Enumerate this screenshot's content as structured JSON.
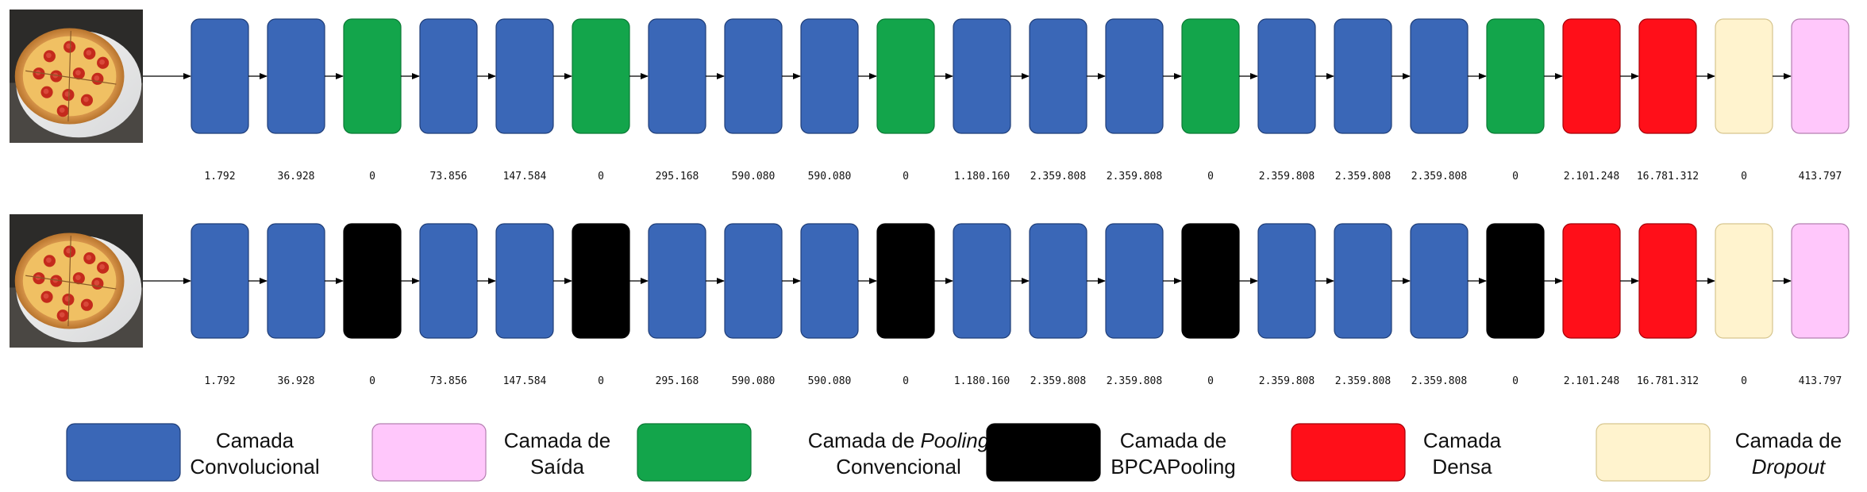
{
  "colors": {
    "conv": "#3A67B7",
    "conv_border": "#1F3E78",
    "pool_conv": "#13A54B",
    "pool_bpca": "#000000",
    "dense": "#FF0F19",
    "dropout": "#FFF3CE",
    "dropout_border": "#D6C58E",
    "output": "#FFC7FB",
    "output_border": "#B47FB0"
  },
  "rows": [
    {
      "image_icon": "pizza-photo",
      "layers": [
        {
          "type": "conv",
          "params": "1.792"
        },
        {
          "type": "conv",
          "params": "36.928"
        },
        {
          "type": "pool_conv",
          "params": "0"
        },
        {
          "type": "conv",
          "params": "73.856"
        },
        {
          "type": "conv",
          "params": "147.584"
        },
        {
          "type": "pool_conv",
          "params": "0"
        },
        {
          "type": "conv",
          "params": "295.168"
        },
        {
          "type": "conv",
          "params": "590.080"
        },
        {
          "type": "conv",
          "params": "590.080"
        },
        {
          "type": "pool_conv",
          "params": "0"
        },
        {
          "type": "conv",
          "params": "1.180.160"
        },
        {
          "type": "conv",
          "params": "2.359.808"
        },
        {
          "type": "conv",
          "params": "2.359.808"
        },
        {
          "type": "pool_conv",
          "params": "0"
        },
        {
          "type": "conv",
          "params": "2.359.808"
        },
        {
          "type": "conv",
          "params": "2.359.808"
        },
        {
          "type": "conv",
          "params": "2.359.808"
        },
        {
          "type": "pool_conv",
          "params": "0"
        },
        {
          "type": "dense",
          "params": "2.101.248"
        },
        {
          "type": "dense",
          "params": "16.781.312"
        },
        {
          "type": "dropout",
          "params": "0"
        },
        {
          "type": "output",
          "params": "413.797"
        }
      ]
    },
    {
      "image_icon": "pizza-photo",
      "layers": [
        {
          "type": "conv",
          "params": "1.792"
        },
        {
          "type": "conv",
          "params": "36.928"
        },
        {
          "type": "pool_bpca",
          "params": "0"
        },
        {
          "type": "conv",
          "params": "73.856"
        },
        {
          "type": "conv",
          "params": "147.584"
        },
        {
          "type": "pool_bpca",
          "params": "0"
        },
        {
          "type": "conv",
          "params": "295.168"
        },
        {
          "type": "conv",
          "params": "590.080"
        },
        {
          "type": "conv",
          "params": "590.080"
        },
        {
          "type": "pool_bpca",
          "params": "0"
        },
        {
          "type": "conv",
          "params": "1.180.160"
        },
        {
          "type": "conv",
          "params": "2.359.808"
        },
        {
          "type": "conv",
          "params": "2.359.808"
        },
        {
          "type": "pool_bpca",
          "params": "0"
        },
        {
          "type": "conv",
          "params": "2.359.808"
        },
        {
          "type": "conv",
          "params": "2.359.808"
        },
        {
          "type": "conv",
          "params": "2.359.808"
        },
        {
          "type": "pool_bpca",
          "params": "0"
        },
        {
          "type": "dense",
          "params": "2.101.248"
        },
        {
          "type": "dense",
          "params": "16.781.312"
        },
        {
          "type": "dropout",
          "params": "0"
        },
        {
          "type": "output",
          "params": "413.797"
        }
      ]
    }
  ],
  "legend": [
    {
      "type": "conv",
      "lines": [
        [
          {
            "t": "Camada"
          }
        ],
        [
          {
            "t": "Convolucional"
          }
        ]
      ]
    },
    {
      "type": "output",
      "lines": [
        [
          {
            "t": "Camada de"
          }
        ],
        [
          {
            "t": "Saída"
          }
        ]
      ]
    },
    {
      "type": "pool_conv",
      "lines": [
        [
          {
            "t": "Camada de "
          },
          {
            "t": "Pooling",
            "i": true
          }
        ],
        [
          {
            "t": "Convencional"
          }
        ]
      ]
    },
    {
      "type": "pool_bpca",
      "lines": [
        [
          {
            "t": "Camada de"
          }
        ],
        [
          {
            "t": "BPCAPooling"
          }
        ]
      ]
    },
    {
      "type": "dense",
      "lines": [
        [
          {
            "t": "Camada"
          }
        ],
        [
          {
            "t": "Densa"
          }
        ]
      ]
    },
    {
      "type": "dropout",
      "lines": [
        [
          {
            "t": "Camada de"
          }
        ],
        [
          {
            "t": "Dropout",
            "i": true
          }
        ]
      ]
    }
  ]
}
